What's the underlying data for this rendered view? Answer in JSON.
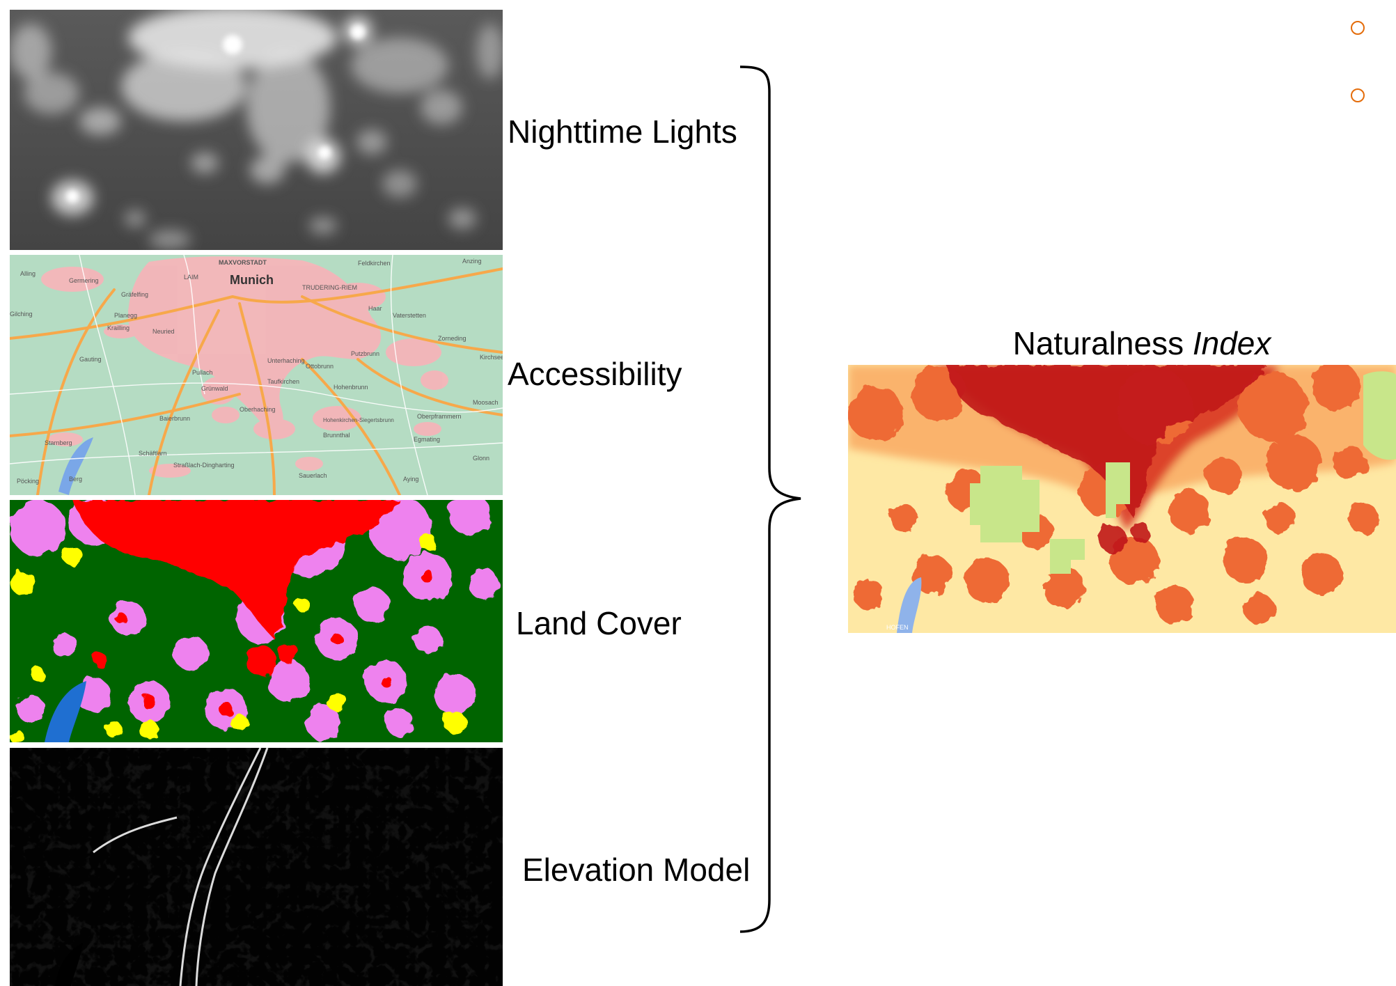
{
  "layers": [
    {
      "label": "Nighttime Lights"
    },
    {
      "label": "Accessibility"
    },
    {
      "label": "Land Cover"
    },
    {
      "label": "Elevation Model"
    }
  ],
  "access_map": {
    "labels": [
      "MAXVORSTADT",
      "Munich",
      "LAIM",
      "TRUDERING-RIEM",
      "Feldkirchen",
      "Gräfelfing",
      "Planegg",
      "Krailling",
      "Neuried",
      "Gauting",
      "Pullach",
      "Grünwald",
      "Unterhaching",
      "Ottobrunn",
      "Taufkirchen",
      "Hohenbrunn",
      "Putzbrunn",
      "Oberhaching",
      "Baierbrunn",
      "Starnberg",
      "Schäftlarn",
      "Straßlach-Dingharting",
      "Sauerlach",
      "Brunnthal",
      "Egmating",
      "Oberpframmern",
      "Zorneding",
      "Vaterstetten",
      "Haar",
      "Germering",
      "Alling",
      "Gilching",
      "Pöcking",
      "Berg",
      "Aying",
      "Glonn",
      "Moosach",
      "Kirchseeon",
      "Anzing",
      "Hohenkirchen-Siegertsbrunn"
    ]
  },
  "index_map": {
    "title_main": "Naturalness ",
    "title_italic": "Index",
    "corner_label": "HOFEN"
  },
  "colors": {
    "bullet": "#e46c0a",
    "landcover_forest": "#006400",
    "landcover_urban": "#ff0000",
    "landcover_agri": "#ee82ee",
    "landcover_grass": "#ffff00",
    "landcover_water": "#1f6fd1"
  }
}
